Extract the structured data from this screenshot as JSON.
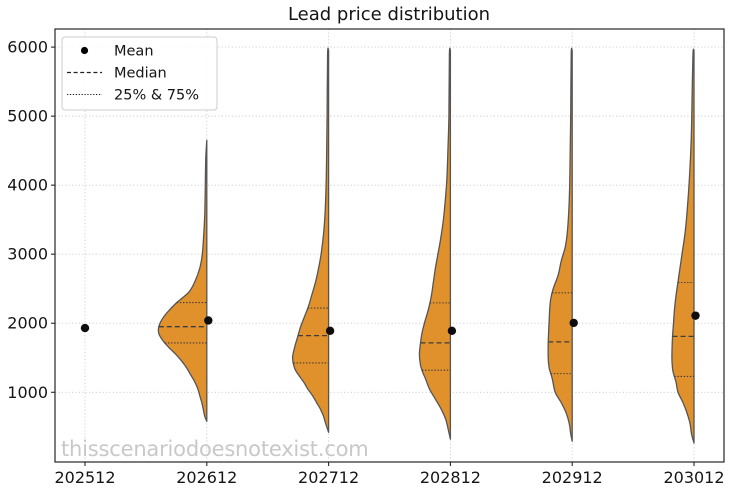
{
  "watermark": "thisscenariodoesnotexist.com",
  "chart_data": {
    "type": "violin",
    "title": "Lead price distribution",
    "orientation": "vertical-half-left",
    "grid": true,
    "categories": [
      "202512",
      "202612",
      "202712",
      "202812",
      "202912",
      "203012"
    ],
    "y_ticks": [
      1000,
      2000,
      3000,
      4000,
      5000,
      6000
    ],
    "ylim": [
      -10,
      6262
    ],
    "legend": {
      "position": "upper left",
      "entries": [
        {
          "label": "Mean",
          "marker": "dot"
        },
        {
          "label": "Median",
          "marker": "dashed-line"
        },
        {
          "label": "25% & 75%",
          "marker": "dotted-line"
        }
      ]
    },
    "colors": {
      "violin_fill": "#e0912c",
      "violin_edge": "#555555",
      "stat_line": "#3d3d3d",
      "mean_dot": "#0d0d0d",
      "grid": "#cbcbcb",
      "frame": "#262626",
      "watermark": "#c8c8c8"
    },
    "series": [
      {
        "category": "202512",
        "mean": 1930
      },
      {
        "category": "202612",
        "mean": 2040,
        "median": 1950,
        "q25": 1715,
        "q75": 2300,
        "min": 580,
        "max": 4650,
        "profile": [
          [
            4650,
            0
          ],
          [
            4400,
            1
          ],
          [
            4000,
            1.5
          ],
          [
            3600,
            2
          ],
          [
            3300,
            3
          ],
          [
            3000,
            4.5
          ],
          [
            2800,
            7
          ],
          [
            2600,
            12
          ],
          [
            2450,
            18
          ],
          [
            2300,
            30
          ],
          [
            2150,
            40
          ],
          [
            2050,
            45
          ],
          [
            1950,
            48
          ],
          [
            1850,
            48
          ],
          [
            1750,
            44
          ],
          [
            1650,
            38
          ],
          [
            1550,
            31
          ],
          [
            1450,
            25
          ],
          [
            1350,
            20
          ],
          [
            1250,
            16
          ],
          [
            1150,
            12
          ],
          [
            1050,
            9
          ],
          [
            950,
            7
          ],
          [
            850,
            5
          ],
          [
            750,
            3.5
          ],
          [
            650,
            2
          ],
          [
            580,
            0
          ]
        ]
      },
      {
        "category": "202712",
        "mean": 1890,
        "median": 1820,
        "q25": 1425,
        "q75": 2220,
        "min": 420,
        "max": 5950,
        "profile": [
          [
            5950,
            0
          ],
          [
            5900,
            1
          ],
          [
            5000,
            1.5
          ],
          [
            4400,
            2
          ],
          [
            4000,
            2.5
          ],
          [
            3600,
            3.5
          ],
          [
            3300,
            5
          ],
          [
            3000,
            7.5
          ],
          [
            2800,
            10
          ],
          [
            2600,
            13
          ],
          [
            2400,
            17
          ],
          [
            2250,
            20
          ],
          [
            2100,
            24
          ],
          [
            1950,
            28
          ],
          [
            1800,
            31
          ],
          [
            1650,
            34
          ],
          [
            1500,
            36
          ],
          [
            1350,
            34
          ],
          [
            1250,
            30
          ],
          [
            1150,
            25
          ],
          [
            1050,
            21
          ],
          [
            950,
            16
          ],
          [
            850,
            12
          ],
          [
            750,
            8
          ],
          [
            650,
            5
          ],
          [
            550,
            3
          ],
          [
            420,
            0
          ]
        ]
      },
      {
        "category": "202812",
        "mean": 1890,
        "median": 1715,
        "q25": 1320,
        "q75": 2295,
        "min": 320,
        "max": 5950,
        "profile": [
          [
            5950,
            0
          ],
          [
            5900,
            1
          ],
          [
            5000,
            1.5
          ],
          [
            4500,
            2.5
          ],
          [
            4100,
            3.5
          ],
          [
            3800,
            5
          ],
          [
            3500,
            7
          ],
          [
            3200,
            10
          ],
          [
            3000,
            12.5
          ],
          [
            2800,
            15
          ],
          [
            2600,
            17
          ],
          [
            2400,
            19
          ],
          [
            2200,
            22
          ],
          [
            2000,
            26
          ],
          [
            1850,
            28.5
          ],
          [
            1700,
            30
          ],
          [
            1550,
            31
          ],
          [
            1400,
            30
          ],
          [
            1300,
            28
          ],
          [
            1200,
            25
          ],
          [
            1050,
            21
          ],
          [
            900,
            15
          ],
          [
            750,
            9
          ],
          [
            600,
            4.5
          ],
          [
            450,
            2
          ],
          [
            320,
            0
          ]
        ]
      },
      {
        "category": "202912",
        "mean": 2005,
        "median": 1730,
        "q25": 1270,
        "q75": 2440,
        "min": 290,
        "max": 5950,
        "profile": [
          [
            5950,
            0
          ],
          [
            5900,
            1
          ],
          [
            5000,
            1.5
          ],
          [
            4500,
            2
          ],
          [
            4000,
            2.5
          ],
          [
            3600,
            3.5
          ],
          [
            3300,
            5
          ],
          [
            3100,
            7
          ],
          [
            2900,
            11
          ],
          [
            2700,
            14
          ],
          [
            2500,
            19
          ],
          [
            2350,
            21.5
          ],
          [
            2200,
            22.5
          ],
          [
            2050,
            23
          ],
          [
            1900,
            23.5
          ],
          [
            1700,
            24
          ],
          [
            1500,
            24
          ],
          [
            1350,
            23
          ],
          [
            1200,
            20
          ],
          [
            1000,
            17
          ],
          [
            850,
            11
          ],
          [
            700,
            6
          ],
          [
            550,
            3
          ],
          [
            400,
            1.5
          ],
          [
            290,
            0
          ]
        ]
      },
      {
        "category": "203012",
        "mean": 2110,
        "median": 1810,
        "q25": 1230,
        "q75": 2590,
        "min": 265,
        "max": 5950,
        "profile": [
          [
            5950,
            0
          ],
          [
            5900,
            1
          ],
          [
            5200,
            2
          ],
          [
            4800,
            2.5
          ],
          [
            4400,
            3.5
          ],
          [
            4000,
            5
          ],
          [
            3600,
            7
          ],
          [
            3300,
            9
          ],
          [
            3000,
            12
          ],
          [
            2800,
            14
          ],
          [
            2600,
            16
          ],
          [
            2400,
            18
          ],
          [
            2200,
            19.5
          ],
          [
            2000,
            20.5
          ],
          [
            1800,
            21.5
          ],
          [
            1600,
            22
          ],
          [
            1450,
            22
          ],
          [
            1300,
            21
          ],
          [
            1150,
            18
          ],
          [
            1000,
            16
          ],
          [
            850,
            11
          ],
          [
            700,
            7
          ],
          [
            550,
            4
          ],
          [
            400,
            2.5
          ],
          [
            265,
            0
          ]
        ]
      }
    ]
  }
}
